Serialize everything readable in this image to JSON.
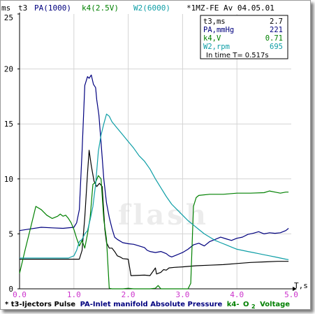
{
  "header": {
    "ms_unit": "ms",
    "legend_t3": "t3",
    "legend_pa": "PA(1000)",
    "legend_k4": "k4(2.5V)",
    "legend_w2": "W2(6000)",
    "title_right": "*1MZ-FE Av 04.05.01"
  },
  "info_box": {
    "rows": [
      {
        "label": "t3,ms",
        "value": "2.7",
        "color": "#000000"
      },
      {
        "label": "PA,mmHg",
        "value": "221",
        "color": "#00007f"
      },
      {
        "label": "k4,V",
        "value": "0.71",
        "color": "#008000"
      },
      {
        "label": "W2,rpm",
        "value": "695",
        "color": "#0e9ea6"
      }
    ],
    "footer_label": "In time T=",
    "footer_value": "0.517s"
  },
  "watermark": "flash",
  "footer": {
    "star": "*",
    "part1": "t3-Ijectors Pulse",
    "part2": "PA-Inlet manifold Absolute Pressure",
    "part3_prefix": "k4-",
    "part3_sym": "O",
    "part3_sub": "2",
    "part3_suffix": "Voltage"
  },
  "chart_data": {
    "type": "line",
    "xlabel": "T,s",
    "ylabel": "ms",
    "xlim": [
      0,
      5
    ],
    "ylim": [
      0,
      25
    ],
    "x_ticks": [
      "0.0",
      "1.0",
      "2.0",
      "3.0",
      "4.0",
      "5.0"
    ],
    "y_ticks": [
      "0",
      "5",
      "10",
      "15",
      "20",
      "25"
    ],
    "grid": true,
    "colors": {
      "x_ticks": "#cc33cc",
      "y_ticks": "#000000"
    },
    "series": [
      {
        "name": "t3",
        "color": "#000000",
        "points": [
          [
            0.0,
            2.7
          ],
          [
            0.5,
            2.7
          ],
          [
            0.9,
            2.7
          ],
          [
            1.1,
            2.7
          ],
          [
            1.15,
            3.5
          ],
          [
            1.2,
            6.5
          ],
          [
            1.25,
            10.5
          ],
          [
            1.28,
            12.6
          ],
          [
            1.32,
            11.2
          ],
          [
            1.37,
            9.8
          ],
          [
            1.42,
            9.3
          ],
          [
            1.47,
            9.6
          ],
          [
            1.52,
            9.3
          ],
          [
            1.57,
            5.4
          ],
          [
            1.6,
            4.2
          ],
          [
            1.65,
            3.7
          ],
          [
            1.7,
            3.7
          ],
          [
            1.75,
            3.4
          ],
          [
            1.8,
            3.0
          ],
          [
            1.85,
            2.9
          ],
          [
            1.9,
            2.75
          ],
          [
            2.0,
            2.7
          ],
          [
            2.05,
            1.2
          ],
          [
            2.3,
            1.25
          ],
          [
            2.4,
            1.2
          ],
          [
            2.5,
            1.9
          ],
          [
            2.52,
            1.35
          ],
          [
            2.6,
            1.5
          ],
          [
            2.65,
            1.75
          ],
          [
            2.7,
            1.7
          ],
          [
            2.75,
            1.9
          ],
          [
            2.85,
            1.95
          ],
          [
            3.0,
            2.0
          ],
          [
            3.25,
            2.1
          ],
          [
            3.5,
            2.15
          ],
          [
            3.75,
            2.2
          ],
          [
            4.0,
            2.3
          ],
          [
            4.25,
            2.4
          ],
          [
            4.5,
            2.45
          ],
          [
            4.75,
            2.5
          ],
          [
            4.95,
            2.5
          ]
        ]
      },
      {
        "name": "PA",
        "color": "#00007f",
        "points": [
          [
            0.0,
            5.3
          ],
          [
            0.2,
            5.45
          ],
          [
            0.4,
            5.6
          ],
          [
            0.6,
            5.55
          ],
          [
            0.8,
            5.5
          ],
          [
            1.0,
            5.6
          ],
          [
            1.05,
            6.0
          ],
          [
            1.1,
            7.2
          ],
          [
            1.15,
            12.5
          ],
          [
            1.2,
            18.5
          ],
          [
            1.25,
            19.3
          ],
          [
            1.28,
            19.15
          ],
          [
            1.32,
            19.45
          ],
          [
            1.36,
            18.6
          ],
          [
            1.4,
            18.3
          ],
          [
            1.42,
            17.2
          ],
          [
            1.46,
            15.8
          ],
          [
            1.5,
            13.3
          ],
          [
            1.55,
            10.0
          ],
          [
            1.6,
            7.8
          ],
          [
            1.65,
            6.5
          ],
          [
            1.7,
            5.5
          ],
          [
            1.75,
            4.7
          ],
          [
            1.8,
            4.5
          ],
          [
            1.9,
            4.2
          ],
          [
            2.0,
            4.1
          ],
          [
            2.1,
            4.05
          ],
          [
            2.2,
            3.9
          ],
          [
            2.3,
            3.75
          ],
          [
            2.35,
            3.5
          ],
          [
            2.4,
            3.4
          ],
          [
            2.5,
            3.3
          ],
          [
            2.6,
            3.4
          ],
          [
            2.7,
            3.2
          ],
          [
            2.75,
            3.0
          ],
          [
            2.8,
            2.9
          ],
          [
            2.9,
            3.1
          ],
          [
            3.0,
            3.3
          ],
          [
            3.1,
            3.6
          ],
          [
            3.2,
            4.0
          ],
          [
            3.3,
            4.15
          ],
          [
            3.4,
            3.9
          ],
          [
            3.5,
            4.3
          ],
          [
            3.6,
            4.5
          ],
          [
            3.7,
            4.7
          ],
          [
            3.8,
            4.55
          ],
          [
            3.9,
            4.4
          ],
          [
            4.0,
            4.6
          ],
          [
            4.1,
            4.7
          ],
          [
            4.2,
            4.95
          ],
          [
            4.3,
            5.05
          ],
          [
            4.4,
            5.2
          ],
          [
            4.5,
            5.0
          ],
          [
            4.6,
            5.1
          ],
          [
            4.7,
            5.05
          ],
          [
            4.8,
            5.1
          ],
          [
            4.9,
            5.3
          ],
          [
            4.95,
            5.5
          ]
        ]
      },
      {
        "name": "k4",
        "color": "#008000",
        "points": [
          [
            0.0,
            1.4
          ],
          [
            0.1,
            3.5
          ],
          [
            0.2,
            5.5
          ],
          [
            0.3,
            7.5
          ],
          [
            0.4,
            7.2
          ],
          [
            0.5,
            6.7
          ],
          [
            0.6,
            6.4
          ],
          [
            0.7,
            6.6
          ],
          [
            0.75,
            6.8
          ],
          [
            0.8,
            6.6
          ],
          [
            0.85,
            6.7
          ],
          [
            0.9,
            6.4
          ],
          [
            0.95,
            6.0
          ],
          [
            1.0,
            5.4
          ],
          [
            1.05,
            4.6
          ],
          [
            1.1,
            3.9
          ],
          [
            1.15,
            4.4
          ],
          [
            1.2,
            3.7
          ],
          [
            1.25,
            5.0
          ],
          [
            1.3,
            6.5
          ],
          [
            1.35,
            9.5
          ],
          [
            1.4,
            9.7
          ],
          [
            1.45,
            10.3
          ],
          [
            1.5,
            10.0
          ],
          [
            1.55,
            6.3
          ],
          [
            1.6,
            4.5
          ],
          [
            1.65,
            0.05
          ],
          [
            1.7,
            0.0
          ],
          [
            1.8,
            0.0
          ],
          [
            1.9,
            0.0
          ],
          [
            2.0,
            0.05
          ],
          [
            2.1,
            0.0
          ],
          [
            2.2,
            0.0
          ],
          [
            2.3,
            0.0
          ],
          [
            2.4,
            0.0
          ],
          [
            2.5,
            0.05
          ],
          [
            2.55,
            0.3
          ],
          [
            2.6,
            0.0
          ],
          [
            2.7,
            0.0
          ],
          [
            2.8,
            0.0
          ],
          [
            2.9,
            0.0
          ],
          [
            3.0,
            0.0
          ],
          [
            3.1,
            0.0
          ],
          [
            3.15,
            0.5
          ],
          [
            3.2,
            7.5
          ],
          [
            3.25,
            8.3
          ],
          [
            3.3,
            8.5
          ],
          [
            3.5,
            8.6
          ],
          [
            3.75,
            8.6
          ],
          [
            4.0,
            8.7
          ],
          [
            4.25,
            8.7
          ],
          [
            4.5,
            8.75
          ],
          [
            4.6,
            8.9
          ],
          [
            4.7,
            8.8
          ],
          [
            4.8,
            8.7
          ],
          [
            4.9,
            8.8
          ],
          [
            4.95,
            8.8
          ]
        ]
      },
      {
        "name": "W2",
        "color": "#0e9ea6",
        "points": [
          [
            0.0,
            2.8
          ],
          [
            0.3,
            2.8
          ],
          [
            0.6,
            2.8
          ],
          [
            0.9,
            2.8
          ],
          [
            1.0,
            3.0
          ],
          [
            1.05,
            3.5
          ],
          [
            1.1,
            4.3
          ],
          [
            1.15,
            4.5
          ],
          [
            1.2,
            5.0
          ],
          [
            1.25,
            5.3
          ],
          [
            1.3,
            6.3
          ],
          [
            1.35,
            7.5
          ],
          [
            1.4,
            9.5
          ],
          [
            1.45,
            12.5
          ],
          [
            1.5,
            14.0
          ],
          [
            1.55,
            15.0
          ],
          [
            1.6,
            15.9
          ],
          [
            1.65,
            15.7
          ],
          [
            1.7,
            15.2
          ],
          [
            1.8,
            14.6
          ],
          [
            1.9,
            14.0
          ],
          [
            2.0,
            13.4
          ],
          [
            2.1,
            12.8
          ],
          [
            2.2,
            12.1
          ],
          [
            2.3,
            11.6
          ],
          [
            2.4,
            10.9
          ],
          [
            2.5,
            10.0
          ],
          [
            2.6,
            9.2
          ],
          [
            2.7,
            8.4
          ],
          [
            2.8,
            7.7
          ],
          [
            2.9,
            7.2
          ],
          [
            3.0,
            6.7
          ],
          [
            3.1,
            6.2
          ],
          [
            3.2,
            5.8
          ],
          [
            3.3,
            5.4
          ],
          [
            3.4,
            5.0
          ],
          [
            3.5,
            4.7
          ],
          [
            3.6,
            4.4
          ],
          [
            3.7,
            4.2
          ],
          [
            3.8,
            4.0
          ],
          [
            3.9,
            3.8
          ],
          [
            4.0,
            3.6
          ],
          [
            4.1,
            3.5
          ],
          [
            4.2,
            3.4
          ],
          [
            4.3,
            3.3
          ],
          [
            4.4,
            3.2
          ],
          [
            4.5,
            3.1
          ],
          [
            4.6,
            3.0
          ],
          [
            4.7,
            2.9
          ],
          [
            4.8,
            2.8
          ],
          [
            4.9,
            2.7
          ],
          [
            4.95,
            2.65
          ]
        ]
      }
    ]
  }
}
